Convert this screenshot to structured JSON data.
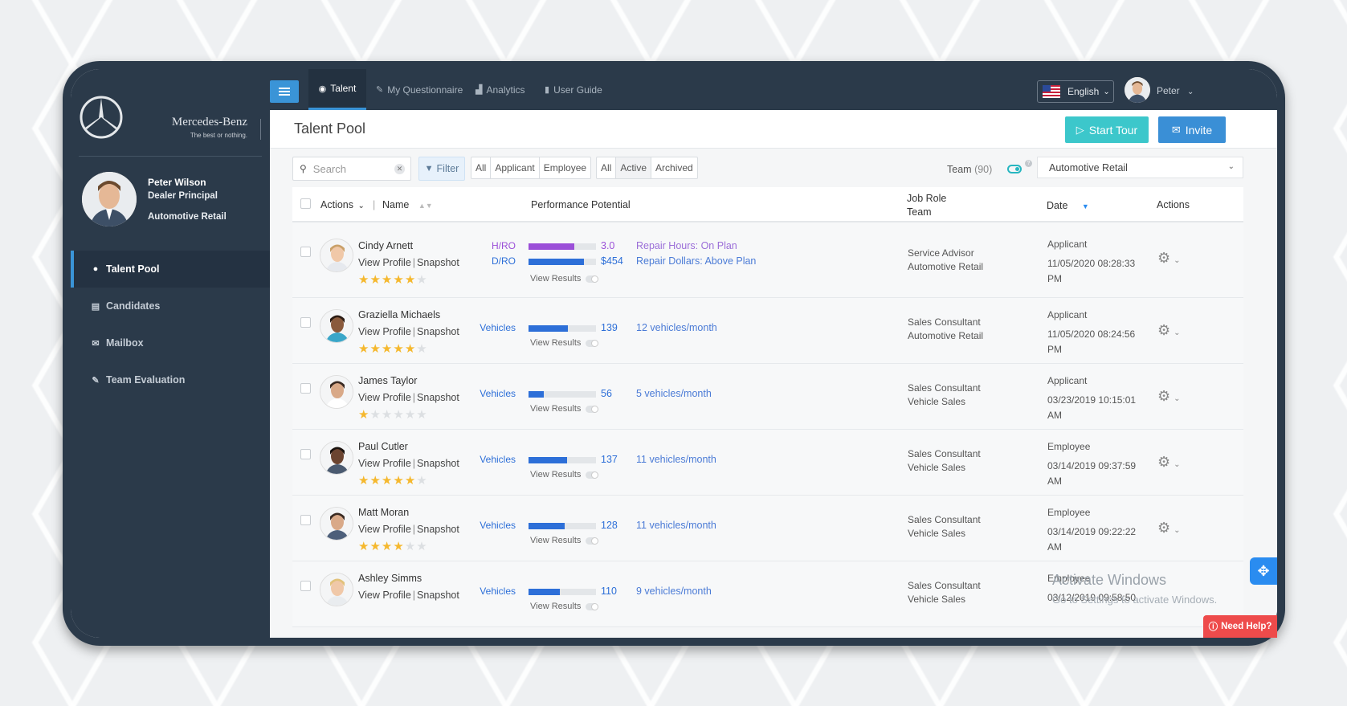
{
  "brand": {
    "name": "Mercedes-Benz",
    "tagline": "The best or nothing."
  },
  "profile": {
    "name": "Peter Wilson",
    "role": "Dealer Principal",
    "team": "Automotive Retail"
  },
  "sidebar": {
    "items": [
      {
        "label": "Talent Pool",
        "icon": "user-circle-icon",
        "active": true
      },
      {
        "label": "Candidates",
        "icon": "id-card-icon"
      },
      {
        "label": "Mailbox",
        "icon": "envelope-icon"
      },
      {
        "label": "Team Evaluation",
        "icon": "edit-icon"
      }
    ]
  },
  "topbar": {
    "tabs": [
      {
        "label": "Talent",
        "icon": "user-circle-icon",
        "active": true
      },
      {
        "label": "My Questionnaire",
        "icon": "edit-icon"
      },
      {
        "label": "Analytics",
        "icon": "chart-icon"
      },
      {
        "label": "User Guide",
        "icon": "book-icon"
      }
    ],
    "language": "English",
    "user": "Peter"
  },
  "header": {
    "title": "Talent Pool",
    "start_tour": "Start Tour",
    "invite": "Invite"
  },
  "filters": {
    "search_placeholder": "Search",
    "filter_label": "Filter",
    "type_options": [
      "All",
      "Applicant",
      "Employee"
    ],
    "status_options": [
      "All",
      "Active",
      "Archived"
    ],
    "status_selected": "Active",
    "team_label": "Team",
    "team_count": "(90)",
    "team_select": "Automotive Retail"
  },
  "table": {
    "columns": {
      "actions": "Actions",
      "name": "Name",
      "performance": "Performance Potential",
      "job_role": "Job Role",
      "team": "Team",
      "date": "Date",
      "actions_right": "Actions"
    },
    "view_profile": "View Profile",
    "snapshot": "Snapshot",
    "view_results": "View Results",
    "rows": [
      {
        "name": "Cindy Arnett",
        "stars": 5,
        "metrics": [
          {
            "label": "H/RO",
            "value": "3.0",
            "fill": 0.68,
            "color": "#9b4fd8",
            "text": "Repair Hours: On Plan",
            "text_color": "#9b6ed8"
          },
          {
            "label": "D/RO",
            "value": "$454",
            "fill": 0.82,
            "color": "#2d6fd8",
            "text": "Repair Dollars: Above Plan",
            "text_color": "#4b7bd6"
          }
        ],
        "job_role": "Service Advisor",
        "team": "Automotive Retail",
        "status": "Applicant",
        "date": "11/05/2020 08:28:33",
        "ampm": "PM"
      },
      {
        "name": "Graziella Michaels",
        "stars": 5,
        "metrics": [
          {
            "label": "Vehicles",
            "value": "139",
            "fill": 0.58,
            "color": "#2d6fd8",
            "text": "12 vehicles/month",
            "text_color": "#4b7bd6"
          }
        ],
        "job_role": "Sales Consultant",
        "team": "Automotive Retail",
        "status": "Applicant",
        "date": "11/05/2020 08:24:56",
        "ampm": "PM"
      },
      {
        "name": "James Taylor",
        "stars": 1,
        "metrics": [
          {
            "label": "Vehicles",
            "value": "56",
            "fill": 0.23,
            "color": "#2d6fd8",
            "text": "5 vehicles/month",
            "text_color": "#4b7bd6"
          }
        ],
        "job_role": "Sales Consultant",
        "team": "Vehicle Sales",
        "status": "Applicant",
        "date": "03/23/2019 10:15:01",
        "ampm": "AM"
      },
      {
        "name": "Paul Cutler",
        "stars": 5,
        "metrics": [
          {
            "label": "Vehicles",
            "value": "137",
            "fill": 0.57,
            "color": "#2d6fd8",
            "text": "11 vehicles/month",
            "text_color": "#4b7bd6"
          }
        ],
        "job_role": "Sales Consultant",
        "team": "Vehicle Sales",
        "status": "Employee",
        "date": "03/14/2019 09:37:59",
        "ampm": "AM"
      },
      {
        "name": "Matt Moran",
        "stars": 4,
        "metrics": [
          {
            "label": "Vehicles",
            "value": "128",
            "fill": 0.53,
            "color": "#2d6fd8",
            "text": "11 vehicles/month",
            "text_color": "#4b7bd6"
          }
        ],
        "job_role": "Sales Consultant",
        "team": "Vehicle Sales",
        "status": "Employee",
        "date": "03/14/2019 09:22:22",
        "ampm": "AM"
      },
      {
        "name": "Ashley Simms",
        "stars": 0,
        "metrics": [
          {
            "label": "Vehicles",
            "value": "110",
            "fill": 0.46,
            "color": "#2d6fd8",
            "text": "9 vehicles/month",
            "text_color": "#4b7bd6"
          }
        ],
        "job_role": "Sales Consultant",
        "team": "Vehicle Sales",
        "status": "Employee",
        "date": "03/12/2019 09:58:50",
        "ampm": ""
      }
    ]
  },
  "overlay": {
    "watermark_title": "Activate Windows",
    "watermark_sub": "Go to Settings to activate Windows.",
    "help": "Need Help?"
  }
}
